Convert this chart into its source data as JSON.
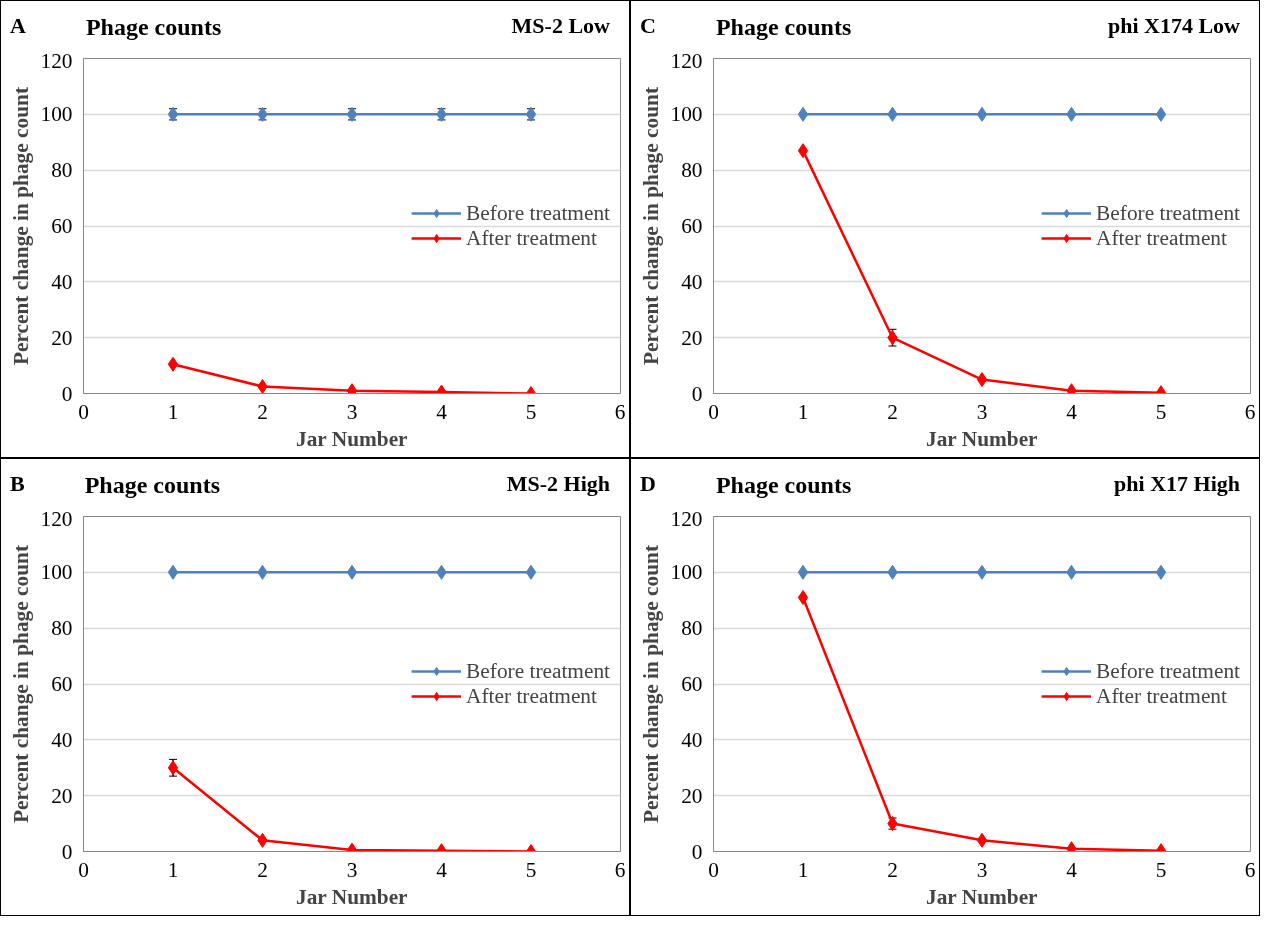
{
  "chart_data": [
    {
      "type": "line",
      "title": "Phage counts",
      "subtitle": "MS-2 Low",
      "annotations": [
        "A"
      ],
      "xlabel": "Jar Number",
      "ylabel": "Percent change in phage count",
      "x": [
        1,
        2,
        3,
        4,
        5
      ],
      "xlim": [
        0,
        6
      ],
      "xticks": [
        0,
        1,
        2,
        3,
        4,
        5,
        6
      ],
      "ylim": [
        0,
        120
      ],
      "yticks": [
        0,
        20,
        40,
        60,
        80,
        100,
        120
      ],
      "grid": "y",
      "legend": "right",
      "marker": "diamond",
      "line_style": "solid",
      "series": [
        {
          "name": "Before treatment",
          "color": "#4f81bd",
          "values": [
            100,
            100,
            100,
            100,
            100
          ],
          "errors": [
            2,
            2,
            2,
            2,
            2
          ]
        },
        {
          "name": "After treatment",
          "color": "#ff0000",
          "values": [
            10.5,
            2.5,
            1,
            0.5,
            0
          ]
        }
      ]
    },
    {
      "type": "line",
      "title": "Phage counts",
      "subtitle": "phi X174 Low",
      "annotations": [
        "C"
      ],
      "xlabel": "Jar Number",
      "ylabel": "Percent change in phage count",
      "x": [
        1,
        2,
        3,
        4,
        5
      ],
      "xlim": [
        0,
        6
      ],
      "xticks": [
        0,
        1,
        2,
        3,
        4,
        5,
        6
      ],
      "ylim": [
        0,
        120
      ],
      "yticks": [
        0,
        20,
        40,
        60,
        80,
        100,
        120
      ],
      "grid": "y",
      "legend": "right",
      "marker": "diamond",
      "line_style": "solid",
      "series": [
        {
          "name": "Before treatment",
          "color": "#4f81bd",
          "values": [
            100,
            100,
            100,
            100,
            100
          ]
        },
        {
          "name": "After treatment",
          "color": "#ff0000",
          "values": [
            87,
            20,
            5,
            1,
            0.3
          ],
          "errors": [
            null,
            3,
            null,
            null,
            null
          ]
        }
      ]
    },
    {
      "type": "line",
      "title": "Phage counts",
      "subtitle": "MS-2 High",
      "annotations": [
        "B"
      ],
      "xlabel": "Jar Number",
      "ylabel": "Percent change in phage count",
      "x": [
        1,
        2,
        3,
        4,
        5
      ],
      "xlim": [
        0,
        6
      ],
      "xticks": [
        0,
        1,
        2,
        3,
        4,
        5,
        6
      ],
      "ylim": [
        0,
        120
      ],
      "yticks": [
        0,
        20,
        40,
        60,
        80,
        100,
        120
      ],
      "grid": "y",
      "legend": "right",
      "marker": "diamond",
      "line_style": "solid",
      "series": [
        {
          "name": "Before treatment",
          "color": "#4f81bd",
          "values": [
            100,
            100,
            100,
            100,
            100
          ]
        },
        {
          "name": "After treatment",
          "color": "#ff0000",
          "values": [
            30,
            4,
            0.5,
            0.3,
            0
          ],
          "errors": [
            3,
            null,
            null,
            null,
            null
          ]
        }
      ]
    },
    {
      "type": "line",
      "title": "Phage counts",
      "subtitle": "phi X17 High",
      "annotations": [
        "D"
      ],
      "xlabel": "Jar Number",
      "ylabel": "Percent change in phage count",
      "x": [
        1,
        2,
        3,
        4,
        5
      ],
      "xlim": [
        0,
        6
      ],
      "xticks": [
        0,
        1,
        2,
        3,
        4,
        5,
        6
      ],
      "ylim": [
        0,
        120
      ],
      "yticks": [
        0,
        20,
        40,
        60,
        80,
        100,
        120
      ],
      "grid": "y",
      "legend": "right",
      "marker": "diamond",
      "line_style": "solid",
      "series": [
        {
          "name": "Before treatment",
          "color": "#4f81bd",
          "values": [
            100,
            100,
            100,
            100,
            100
          ]
        },
        {
          "name": "After treatment",
          "color": "#ff0000",
          "values": [
            91,
            10,
            4,
            1,
            0.3
          ],
          "errors": [
            null,
            2,
            null,
            null,
            null
          ]
        }
      ]
    }
  ]
}
